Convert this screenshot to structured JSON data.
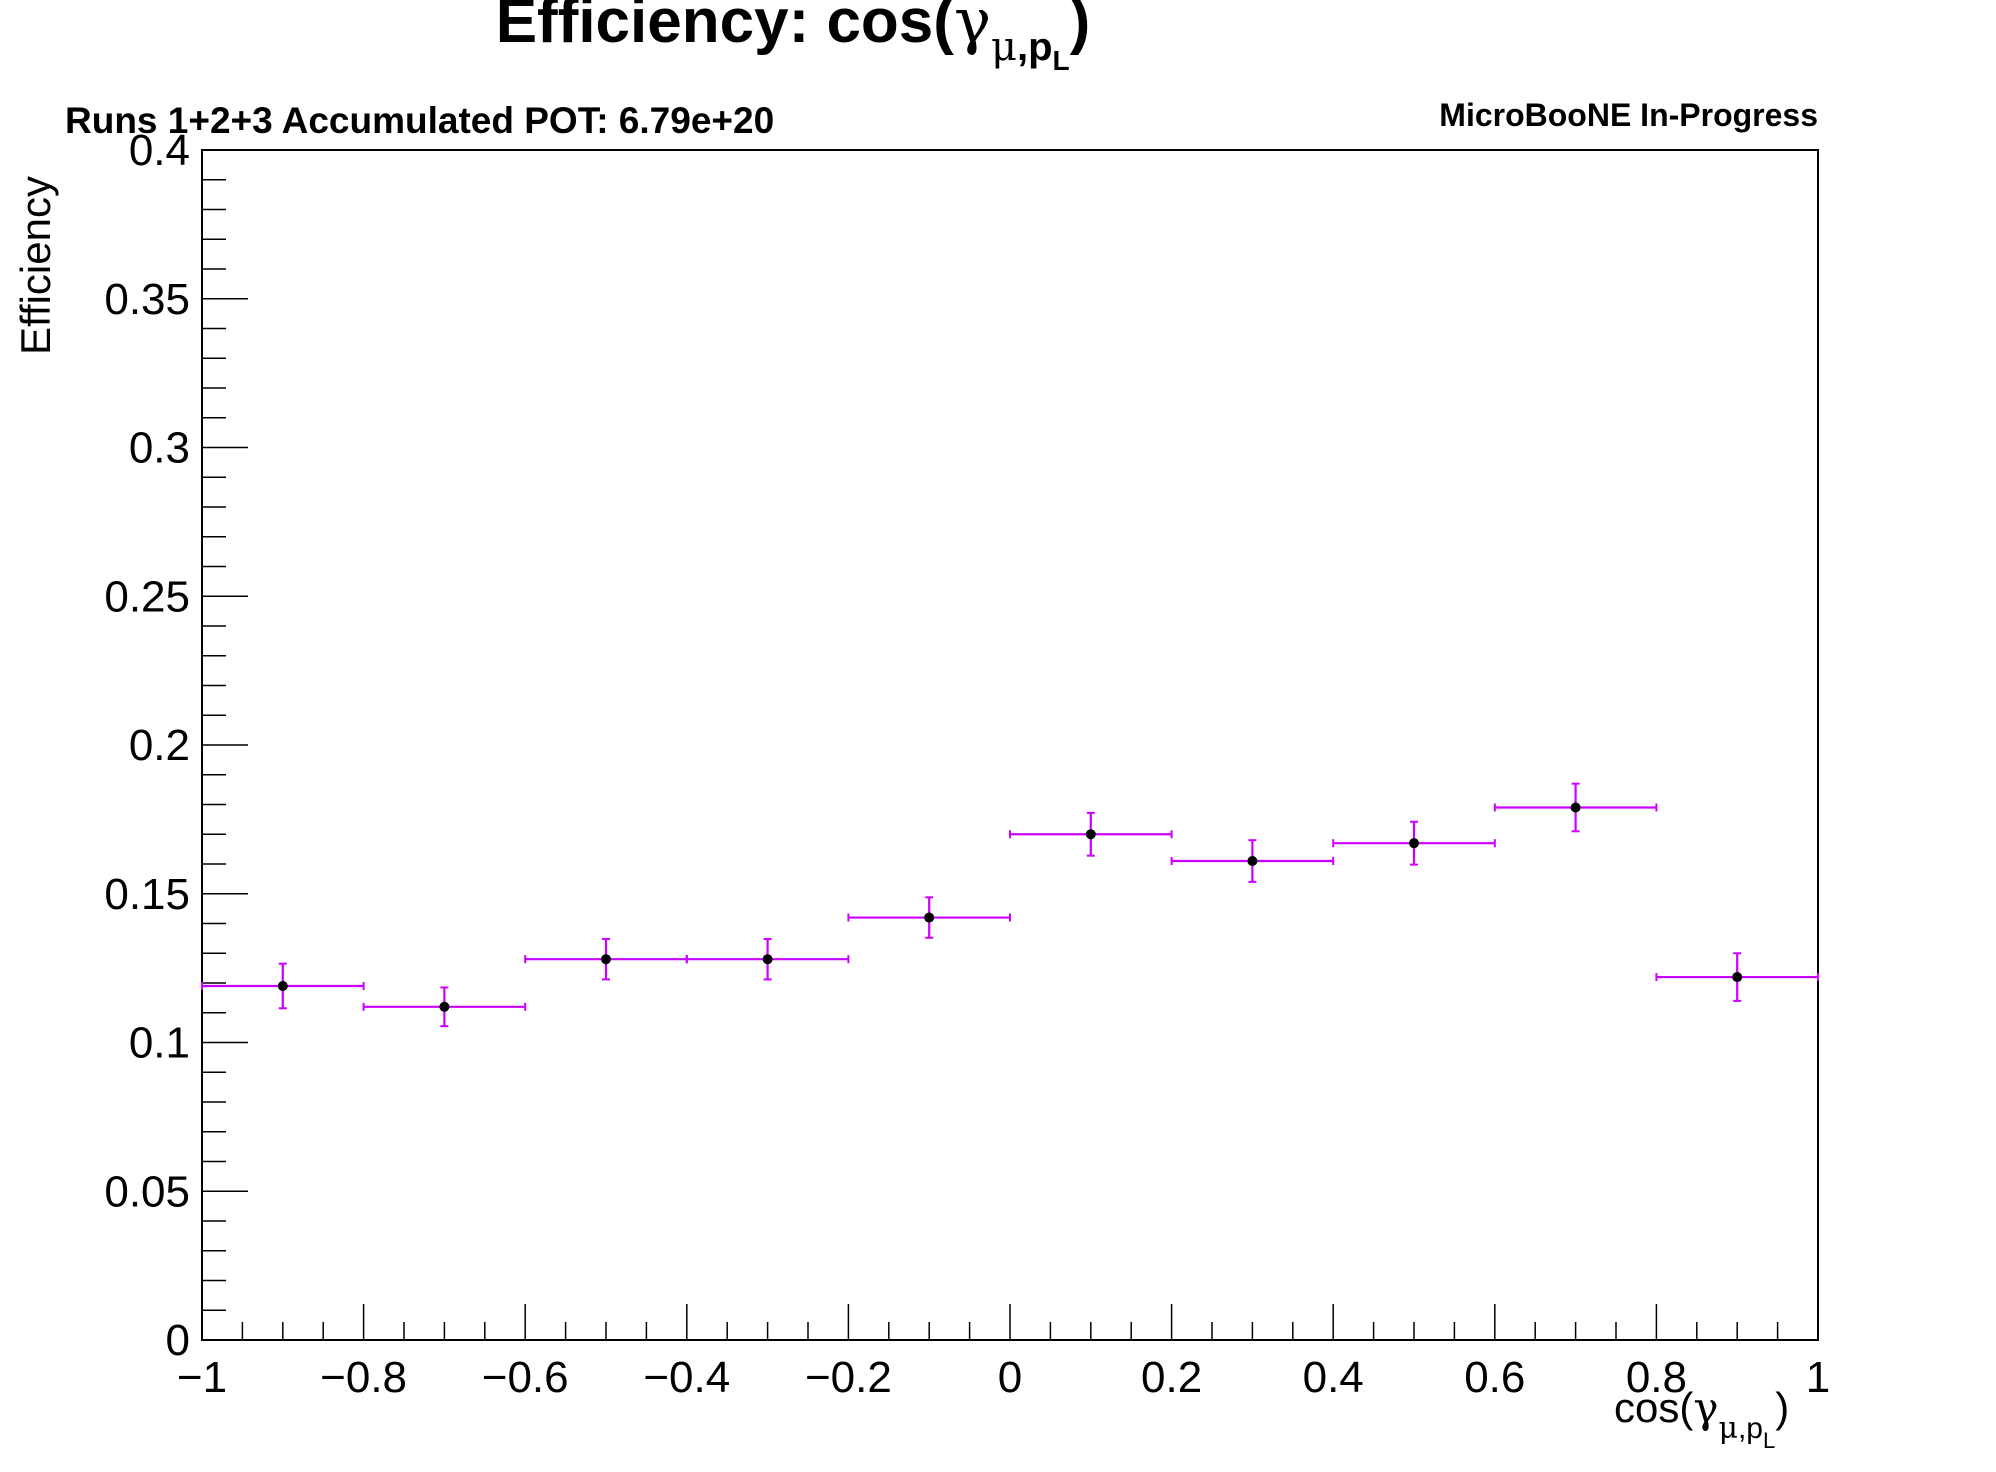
{
  "chart_data": {
    "type": "scatter",
    "title": {
      "main": "Efficiency: cos(",
      "gamma": "γ",
      "mu": "μ",
      "comma": ",p",
      "sub_l": "L",
      "close": ")"
    },
    "subtitle_left": "Runs 1+2+3 Accumulated POT: 6.79e+20",
    "subtitle_right": "MicroBooNE In-Progress",
    "xlabel": {
      "prefix": "cos(",
      "gamma": "γ",
      "mu": "μ",
      "comma": ",p",
      "sub_l": "L",
      "close": ")"
    },
    "ylabel": "Efficiency",
    "xlim": [
      -1,
      1
    ],
    "ylim": [
      0,
      0.4
    ],
    "x_ticks": [
      -1,
      -0.8,
      -0.6,
      -0.4,
      -0.2,
      0,
      0.2,
      0.4,
      0.6,
      0.8,
      1
    ],
    "x_tick_labels": [
      "−1",
      "−0.8",
      "−0.6",
      "−0.4",
      "−0.2",
      "0",
      "0.2",
      "0.4",
      "0.6",
      "0.8",
      "1"
    ],
    "y_ticks": [
      0,
      0.05,
      0.1,
      0.15,
      0.2,
      0.25,
      0.3,
      0.35,
      0.4
    ],
    "y_tick_labels": [
      "0",
      "0.05",
      "0.1",
      "0.15",
      "0.2",
      "0.25",
      "0.3",
      "0.35",
      "0.4"
    ],
    "grid": false,
    "marker_color": "#000000",
    "error_color": "#cc00ff",
    "points": [
      {
        "x": -0.9,
        "xerr": 0.1,
        "y": 0.119,
        "yerr": 0.0075
      },
      {
        "x": -0.7,
        "xerr": 0.1,
        "y": 0.112,
        "yerr": 0.0065
      },
      {
        "x": -0.5,
        "xerr": 0.1,
        "y": 0.128,
        "yerr": 0.0068
      },
      {
        "x": -0.3,
        "xerr": 0.1,
        "y": 0.128,
        "yerr": 0.0068
      },
      {
        "x": -0.1,
        "xerr": 0.1,
        "y": 0.142,
        "yerr": 0.0068
      },
      {
        "x": 0.1,
        "xerr": 0.1,
        "y": 0.17,
        "yerr": 0.0072
      },
      {
        "x": 0.3,
        "xerr": 0.1,
        "y": 0.161,
        "yerr": 0.007
      },
      {
        "x": 0.5,
        "xerr": 0.1,
        "y": 0.167,
        "yerr": 0.0072
      },
      {
        "x": 0.7,
        "xerr": 0.1,
        "y": 0.179,
        "yerr": 0.008
      },
      {
        "x": 0.9,
        "xerr": 0.1,
        "y": 0.122,
        "yerr": 0.008
      }
    ]
  }
}
